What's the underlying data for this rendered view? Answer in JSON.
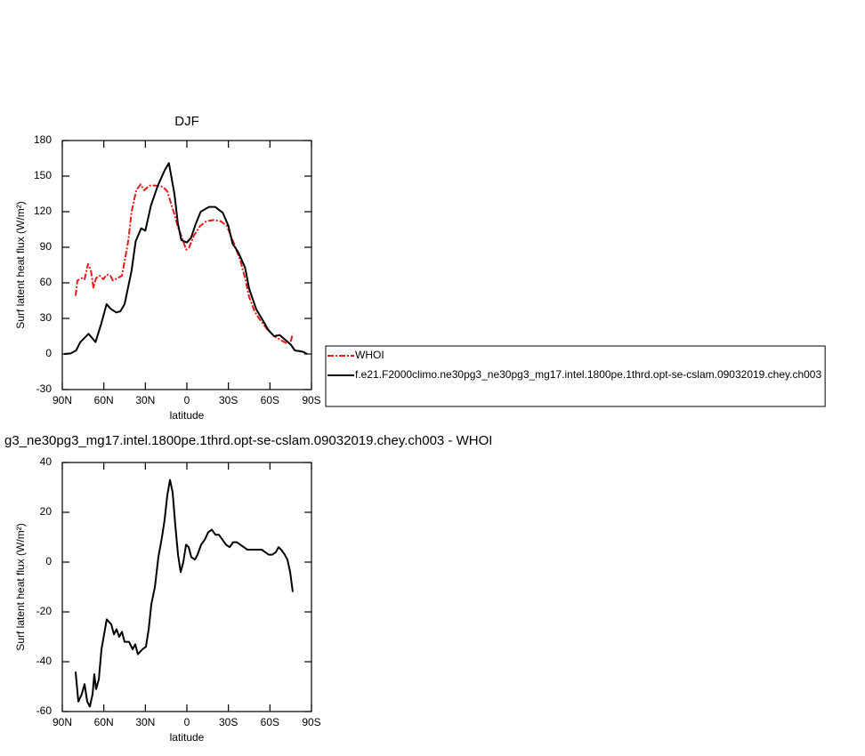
{
  "chart_data": [
    {
      "type": "line",
      "title": "DJF",
      "xlabel": "latitude",
      "ylabel": "Surf latent heat flux (W/m²)",
      "xlim": [
        90,
        -90
      ],
      "xticks": [
        {
          "value": 90,
          "label": "90N"
        },
        {
          "value": 60,
          "label": "60N"
        },
        {
          "value": 30,
          "label": "30N"
        },
        0,
        {
          "value": -30,
          "label": "30S"
        },
        {
          "value": -60,
          "label": "60S"
        },
        {
          "value": -90,
          "label": "90S"
        }
      ],
      "ylim": [
        -30,
        180
      ],
      "yticks": [
        -30,
        0,
        30,
        60,
        90,
        120,
        150,
        180
      ],
      "legend": "right",
      "series": [
        {
          "name": "WHOI",
          "color": "#e41a1c",
          "linestyle": "dashed",
          "x": [
            80.4,
            79.1,
            75.9,
            73.9,
            71.4,
            69.4,
            67.5,
            65.6,
            63,
            60.4,
            57.9,
            55.3,
            53.4,
            50.1,
            46.9,
            45,
            42.4,
            39.9,
            36.6,
            33.4,
            30.9,
            27,
            22.5,
            17.3,
            14.1,
            9.6,
            6.4,
            3.2,
            0.6,
            -1.3,
            -5.1,
            -9.6,
            -14.1,
            -19.3,
            -24.4,
            -28.9,
            -33.4,
            -38.6,
            -42.4,
            -45,
            -48.9,
            -52.7,
            -57.9,
            -63,
            -67.5,
            -72,
            -74.6,
            -76.5
          ],
          "values": [
            49,
            62,
            64,
            63,
            76,
            71,
            56,
            64,
            66,
            63,
            67,
            66,
            62,
            64,
            66,
            78,
            95,
            120,
            138,
            143,
            138,
            142,
            142,
            141,
            137,
            120,
            107,
            97,
            88,
            89,
            100,
            108,
            112,
            113,
            112,
            108,
            95,
            79,
            62,
            48,
            36,
            29,
            21,
            15,
            12,
            9,
            9,
            17
          ]
        },
        {
          "name": "f.e21.F2000climo.ne30pg3_ne30pg3_mg17.intel.1800pe.1thrd.opt-se-cslam.09032019.chey.ch003",
          "color": "#000000",
          "linestyle": "solid",
          "x": [
            88.7,
            84,
            80,
            77,
            71,
            66,
            62,
            58,
            55,
            51,
            48,
            45,
            40,
            37,
            33,
            30,
            26,
            21,
            16,
            13,
            9,
            6.5,
            4,
            0,
            -3,
            -6.5,
            -10,
            -16,
            -20.5,
            -26,
            -30,
            -33,
            -37,
            -42,
            -45,
            -50,
            -55,
            -59,
            -63,
            -67,
            -71,
            -75,
            -78,
            -83.5,
            -87
          ],
          "values": [
            0,
            0.5,
            3,
            10,
            17,
            10,
            25,
            42,
            38,
            35,
            36,
            42,
            70,
            95,
            106,
            104,
            125,
            142,
            155,
            161,
            135,
            110,
            96,
            94,
            98,
            110,
            120,
            124,
            124,
            119,
            108,
            93,
            86,
            73,
            55,
            38,
            28,
            20,
            15,
            16,
            12,
            8,
            3,
            2,
            0
          ]
        }
      ]
    },
    {
      "type": "line",
      "title": "g3_ne30pg3_mg17.intel.1800pe.1thrd.opt-se-cslam.09032019.chey.ch003 - WHOI",
      "xlabel": "latitude",
      "ylabel": "Surf latent heat flux (W/m²)",
      "xlim": [
        90,
        -90
      ],
      "xticks": [
        {
          "value": 90,
          "label": "90N"
        },
        {
          "value": 60,
          "label": "60N"
        },
        {
          "value": 30,
          "label": "30N"
        },
        0,
        {
          "value": -30,
          "label": "30S"
        },
        {
          "value": -60,
          "label": "60S"
        },
        {
          "value": -90,
          "label": "90S"
        }
      ],
      "ylim": [
        -60,
        40
      ],
      "yticks": [
        -60,
        -40,
        -20,
        0,
        20,
        40
      ],
      "series": [
        {
          "color": "#000000",
          "linestyle": "solid",
          "x": [
            80.4,
            78.4,
            75.9,
            73.9,
            72,
            70.1,
            68.1,
            66.9,
            65.6,
            63.6,
            61.7,
            57.9,
            54.6,
            52.7,
            50.8,
            48.9,
            46.9,
            45,
            41.8,
            39.2,
            37.3,
            35.4,
            32.1,
            29.6,
            27.6,
            25.7,
            23.1,
            20.6,
            18,
            16.1,
            14.1,
            12.2,
            10.3,
            8.4,
            6.4,
            4.5,
            2.6,
            0.6,
            -1.3,
            -3.2,
            -5.8,
            -7.7,
            -10.3,
            -12.9,
            -15.4,
            -18,
            -20.6,
            -23.1,
            -25.7,
            -28.3,
            -30.9,
            -33.4,
            -36,
            -38.6,
            -41.1,
            -43.7,
            -46.3,
            -48.9,
            -51.4,
            -54,
            -56.6,
            -59.1,
            -61.7,
            -64.3,
            -66.2,
            -68.1,
            -70.7,
            -72.6,
            -74.6,
            -76.5
          ],
          "values": [
            -44,
            -56,
            -53,
            -49,
            -56,
            -58,
            -53,
            -45,
            -51,
            -47,
            -35,
            -23,
            -25,
            -29,
            -27,
            -30,
            -28,
            -32,
            -32,
            -35,
            -33,
            -37,
            -35,
            -34,
            -27,
            -17,
            -10,
            2,
            10,
            17,
            27,
            33,
            28,
            15,
            3,
            -4,
            0,
            7,
            6,
            2,
            1,
            3,
            7,
            9,
            12,
            13,
            11,
            11,
            9,
            7,
            6,
            8,
            8,
            7,
            6,
            5,
            5,
            5,
            5,
            5,
            4,
            3,
            3,
            4,
            6,
            5,
            3,
            1,
            -4,
            -12
          ]
        }
      ]
    }
  ]
}
